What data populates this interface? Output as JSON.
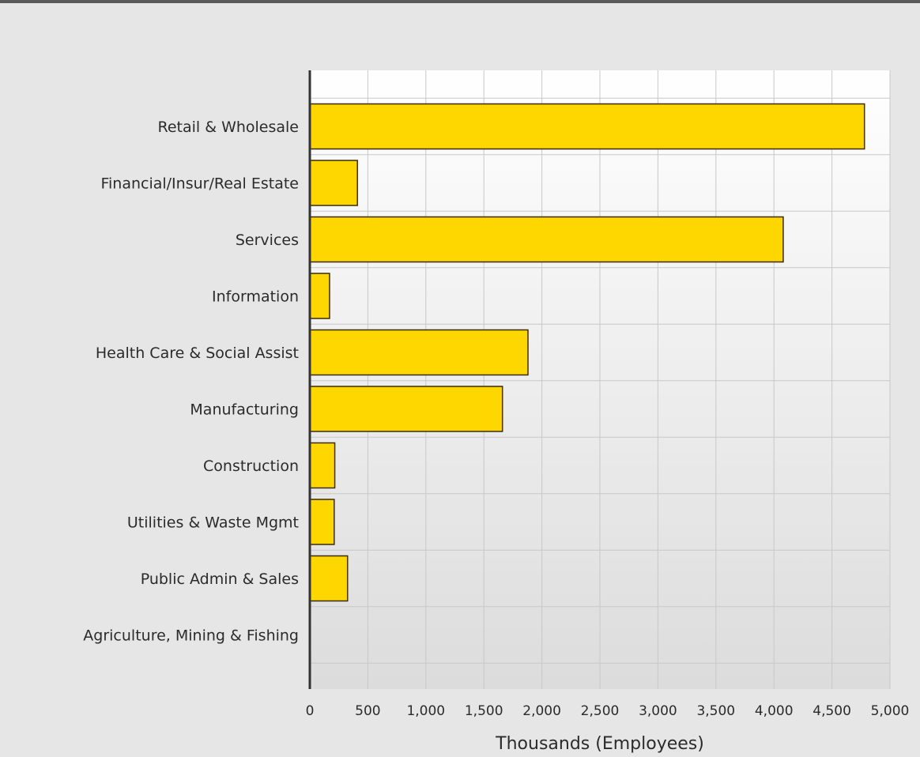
{
  "chart_data": {
    "type": "bar",
    "orientation": "horizontal",
    "categories": [
      "Retail & Wholesale",
      "Financial/Insur/Real Estate",
      "Services",
      "Information",
      "Health Care & Social Assist",
      "Manufacturing",
      "Construction",
      "Utilities & Waste Mgmt",
      "Public Admin & Sales",
      "Agriculture, Mining & Fishing"
    ],
    "values": [
      4780,
      410,
      4080,
      170,
      1880,
      1660,
      215,
      210,
      325,
      0
    ],
    "xlabel": "Thousands (Employees)",
    "ylabel": "",
    "xlim": [
      0,
      5000
    ],
    "xticks": [
      "0",
      "500",
      "1,000",
      "1,500",
      "2,000",
      "2,500",
      "3,000",
      "3,500",
      "4,000",
      "4,500",
      "5,000"
    ],
    "grid": true,
    "bar_color": "#ffd700",
    "bar_stroke": "#3a2a0a"
  }
}
